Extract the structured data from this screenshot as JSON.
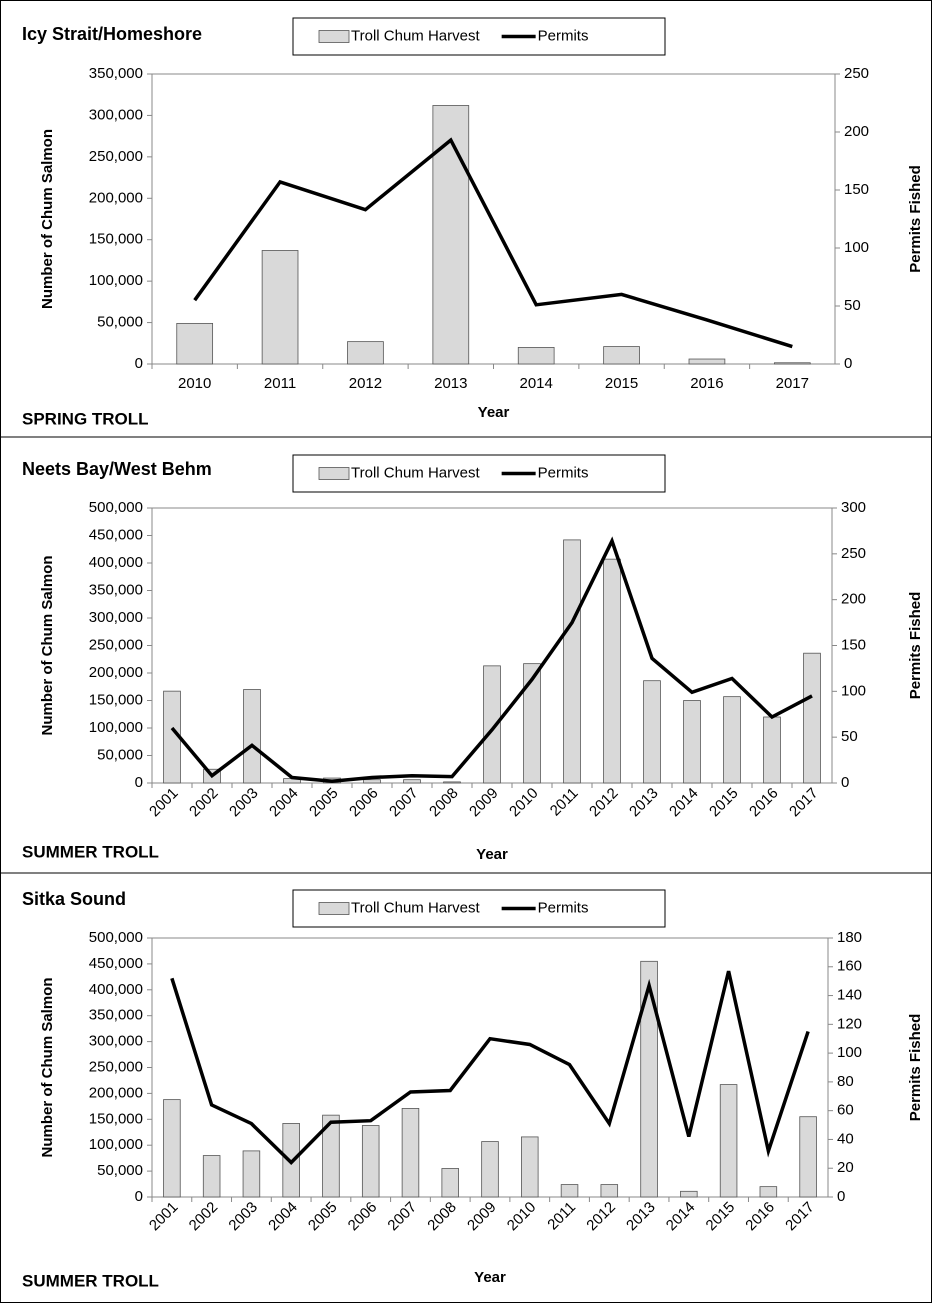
{
  "chart_data": [
    {
      "type": "combo",
      "title": "Icy Strait/Homeshore",
      "footer": "SPRING TROLL",
      "x_label": "Year",
      "y_label": "Number of Chum Salmon",
      "y2_label": "Permits Fished",
      "xtick_rotation": 0,
      "categories": [
        "2010",
        "2011",
        "2012",
        "2013",
        "2014",
        "2015",
        "2016",
        "2017"
      ],
      "series": [
        {
          "name": "Troll Chum Harvest",
          "type": "bar",
          "color": "#d9d9d9",
          "values": [
            49000,
            137000,
            27000,
            312000,
            20000,
            21000,
            6000,
            1500
          ]
        },
        {
          "name": "Permits",
          "type": "line",
          "axis": "y2",
          "color": "#000000",
          "values": [
            55,
            157,
            133,
            193,
            51,
            60,
            38,
            15
          ]
        }
      ],
      "ylim": [
        0,
        350000
      ],
      "yticks": [
        0,
        {
          "value": 50000,
          "label": "50,000"
        },
        {
          "value": 100000,
          "label": "100,000"
        },
        {
          "value": 150000,
          "label": "150,000"
        },
        {
          "value": 200000,
          "label": "200,000"
        },
        {
          "value": 250000,
          "label": "250,000"
        },
        {
          "value": 300000,
          "label": "300,000"
        },
        {
          "value": 350000,
          "label": "350,000"
        }
      ],
      "y2lim": [
        0,
        250
      ],
      "y2ticks": [
        0,
        50,
        100,
        150,
        200,
        250
      ]
    },
    {
      "type": "combo",
      "title": "Neets Bay/West Behm",
      "footer": "SUMMER TROLL",
      "x_label": "Year",
      "y_label": "Number of Chum Salmon",
      "y2_label": "Permits Fished",
      "xtick_rotation": -45,
      "categories": [
        "2001",
        "2002",
        "2003",
        "2004",
        "2005",
        "2006",
        "2007",
        "2008",
        "2009",
        "2010",
        "2011",
        "2012",
        "2013",
        "2014",
        "2015",
        "2016",
        "2017"
      ],
      "series": [
        {
          "name": "Troll Chum Harvest",
          "type": "bar",
          "color": "#d9d9d9",
          "values": [
            167000,
            25000,
            170000,
            8000,
            9000,
            6000,
            6000,
            2000,
            213000,
            217000,
            442000,
            407000,
            186000,
            150000,
            157000,
            120000,
            236000
          ]
        },
        {
          "name": "Permits",
          "type": "line",
          "axis": "y2",
          "color": "#000000",
          "values": [
            60,
            8,
            41,
            6,
            2,
            6,
            8,
            7,
            58,
            113,
            175,
            264,
            136,
            99,
            114,
            72,
            95
          ]
        }
      ],
      "ylim": [
        0,
        500000
      ],
      "yticks": [
        0,
        {
          "value": 50000,
          "label": "50,000"
        },
        {
          "value": 100000,
          "label": "100,000"
        },
        {
          "value": 150000,
          "label": "150,000"
        },
        {
          "value": 200000,
          "label": "200,000"
        },
        {
          "value": 250000,
          "label": "250,000"
        },
        {
          "value": 300000,
          "label": "300,000"
        },
        {
          "value": 350000,
          "label": "350,000"
        },
        {
          "value": 400000,
          "label": "400,000"
        },
        {
          "value": 450000,
          "label": "450,000"
        },
        {
          "value": 500000,
          "label": "500,000"
        }
      ],
      "y2lim": [
        0,
        300
      ],
      "y2ticks": [
        0,
        50,
        100,
        150,
        200,
        250,
        300
      ]
    },
    {
      "type": "combo",
      "title": "Sitka Sound",
      "footer": "SUMMER TROLL",
      "x_label": "Year",
      "y_label": "Number of Chum Salmon",
      "y2_label": "Permits Fished",
      "xtick_rotation": -45,
      "categories": [
        "2001",
        "2002",
        "2003",
        "2004",
        "2005",
        "2006",
        "2007",
        "2008",
        "2009",
        "2010",
        "2011",
        "2012",
        "2013",
        "2014",
        "2015",
        "2016",
        "2017"
      ],
      "series": [
        {
          "name": "Troll Chum Harvest",
          "type": "bar",
          "color": "#d9d9d9",
          "values": [
            188000,
            80000,
            89000,
            142000,
            158000,
            138000,
            171000,
            55000,
            107000,
            116000,
            24000,
            24000,
            455000,
            11000,
            217000,
            20000,
            155000
          ]
        },
        {
          "name": "Permits",
          "type": "line",
          "axis": "y2",
          "color": "#000000",
          "values": [
            152,
            64,
            51,
            24,
            52,
            53,
            73,
            74,
            110,
            106,
            92,
            51,
            147,
            42,
            157,
            32,
            115
          ]
        }
      ],
      "ylim": [
        0,
        500000
      ],
      "yticks": [
        0,
        {
          "value": 50000,
          "label": "50,000"
        },
        {
          "value": 100000,
          "label": "100,000"
        },
        {
          "value": 150000,
          "label": "150,000"
        },
        {
          "value": 200000,
          "label": "200,000"
        },
        {
          "value": 250000,
          "label": "250,000"
        },
        {
          "value": 300000,
          "label": "300,000"
        },
        {
          "value": 350000,
          "label": "350,000"
        },
        {
          "value": 400000,
          "label": "400,000"
        },
        {
          "value": 450000,
          "label": "450,000"
        },
        {
          "value": 500000,
          "label": "500,000"
        }
      ],
      "y2lim": [
        0,
        180
      ],
      "y2ticks": [
        0,
        20,
        40,
        60,
        80,
        100,
        120,
        140,
        160,
        180
      ]
    }
  ]
}
